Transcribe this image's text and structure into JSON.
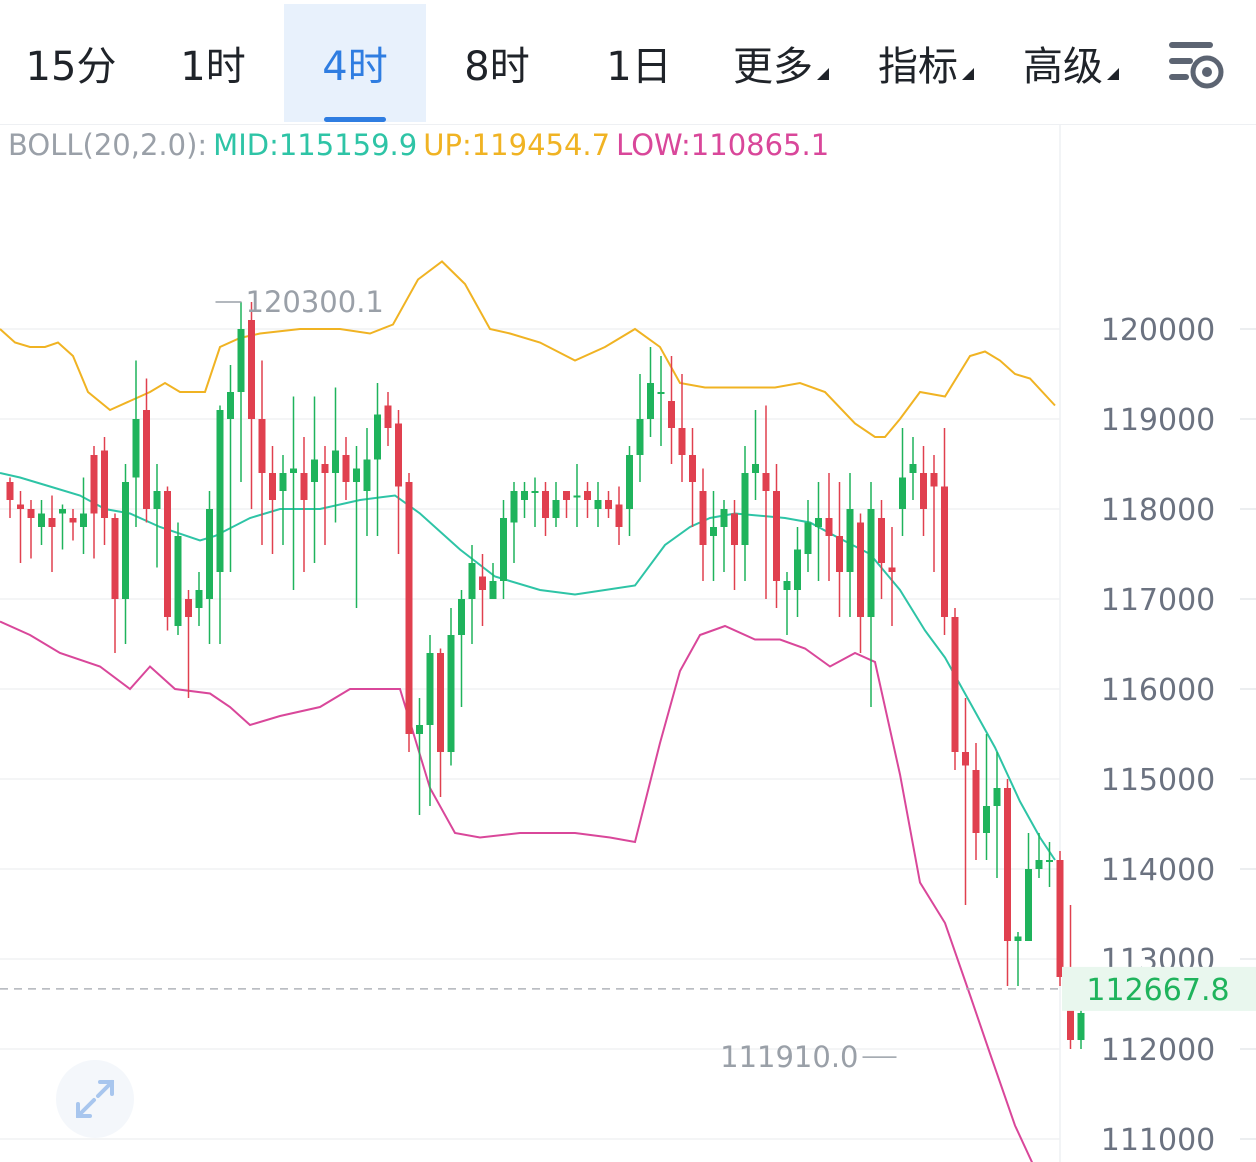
{
  "tabs": [
    {
      "label": "15分",
      "active": false
    },
    {
      "label": "1时",
      "active": false
    },
    {
      "label": "4时",
      "active": true
    },
    {
      "label": "8时",
      "active": false
    },
    {
      "label": "1日",
      "active": false
    },
    {
      "label": "更多",
      "active": false,
      "dropdown": true
    },
    {
      "label": "指标",
      "active": false,
      "dropdown": true
    },
    {
      "label": "高级",
      "active": false,
      "dropdown": true
    }
  ],
  "icons": {
    "settings": "chart-settings-icon",
    "expand": "expand-arrows-icon"
  },
  "legend": {
    "name": "BOLL(20,2.0):",
    "mid": "MID:115159.9",
    "up": "UP:119454.7",
    "low": "LOW:110865.1"
  },
  "colors": {
    "up_candle": "#1fb35c",
    "down_candle": "#e0404f",
    "mid_line": "#2ec4a6",
    "upper_band": "#f0b323",
    "lower_band": "#d9479a",
    "active_tab": "#2f7de1",
    "current_price": "#1fb35c"
  },
  "chart_data": {
    "type": "candlestick",
    "indicator": "BOLL(20,2.0)",
    "ylim": [
      110900,
      121900
    ],
    "y_ticks": [
      120000,
      119000,
      118000,
      117000,
      116000,
      115000,
      114000,
      113000,
      112000,
      111000
    ],
    "y_tick_labels": [
      "120000",
      "119000",
      "118000",
      "117000",
      "116000",
      "115000",
      "114000",
      "113000",
      "112000",
      "111000"
    ],
    "current_price": 112667.8,
    "current_price_label": "112667.8",
    "max_marker": {
      "value": 120300.1,
      "label": "120300.1",
      "index": 19
    },
    "min_marker": {
      "value": 111910.0,
      "label": "111910.0",
      "index": 85
    },
    "candles": [
      [
        118300,
        118100,
        118350,
        117900
      ],
      [
        118050,
        118000,
        118200,
        117400
      ],
      [
        118000,
        117900,
        118100,
        117450
      ],
      [
        117800,
        117950,
        118100,
        117600
      ],
      [
        117900,
        117800,
        118150,
        117300
      ],
      [
        117950,
        118000,
        118050,
        117550
      ],
      [
        117900,
        117850,
        118000,
        117650
      ],
      [
        117800,
        117950,
        118350,
        117500
      ],
      [
        118600,
        117950,
        118700,
        117450
      ],
      [
        118650,
        117900,
        118800,
        117600
      ],
      [
        117900,
        117000,
        117950,
        116400
      ],
      [
        117000,
        118300,
        118500,
        116500
      ],
      [
        118350,
        119000,
        119650,
        117800
      ],
      [
        119100,
        118000,
        119450,
        117850
      ],
      [
        118000,
        118200,
        118500,
        117350
      ],
      [
        118200,
        116800,
        118250,
        116650
      ],
      [
        116700,
        117700,
        117850,
        116600
      ],
      [
        117000,
        116800,
        117100,
        115900
      ],
      [
        116900,
        117100,
        117300,
        116700
      ],
      [
        117000,
        118000,
        118200,
        116500
      ],
      [
        117300,
        119100,
        119150,
        116500
      ],
      [
        119000,
        119300,
        119600,
        117300
      ],
      [
        119300,
        120000,
        120300,
        118300
      ],
      [
        120100,
        119000,
        120300,
        118000
      ],
      [
        119000,
        118400,
        119650,
        117600
      ],
      [
        118400,
        118100,
        118700,
        117500
      ],
      [
        118200,
        118400,
        118600,
        117600
      ],
      [
        118400,
        118450,
        119250,
        117100
      ],
      [
        118400,
        118100,
        118800,
        117300
      ],
      [
        118300,
        118550,
        119250,
        117400
      ],
      [
        118500,
        118400,
        118700,
        117600
      ],
      [
        118400,
        118650,
        119350,
        117850
      ],
      [
        118600,
        118300,
        118800,
        118100
      ],
      [
        118300,
        118450,
        118700,
        116900
      ],
      [
        118200,
        118550,
        118900,
        117700
      ],
      [
        118550,
        119050,
        119400,
        117700
      ],
      [
        119150,
        118900,
        119300,
        118700
      ],
      [
        118950,
        118250,
        119100,
        117500
      ],
      [
        118300,
        115500,
        118400,
        115300
      ],
      [
        115500,
        115600,
        115900,
        114600
      ],
      [
        115600,
        116400,
        116600,
        114700
      ],
      [
        116400,
        115300,
        116450,
        114800
      ],
      [
        115300,
        116600,
        116900,
        115150
      ],
      [
        116600,
        117000,
        117100,
        115800
      ],
      [
        117000,
        117400,
        117600,
        116500
      ],
      [
        117250,
        117100,
        117500,
        116700
      ],
      [
        117000,
        117200,
        117400,
        117100
      ],
      [
        117200,
        117900,
        118100,
        117000
      ],
      [
        117850,
        118200,
        118300,
        117400
      ],
      [
        118100,
        118200,
        118300,
        117900
      ],
      [
        118200,
        118200,
        118350,
        117800
      ],
      [
        118200,
        117900,
        118300,
        117700
      ],
      [
        117900,
        118100,
        118300,
        117800
      ],
      [
        118200,
        118100,
        118150,
        117900
      ],
      [
        118150,
        118150,
        118500,
        117800
      ],
      [
        118200,
        118100,
        118300,
        117900
      ],
      [
        118000,
        118100,
        118300,
        117800
      ],
      [
        118100,
        118000,
        118200,
        117900
      ],
      [
        118050,
        117800,
        118250,
        117600
      ],
      [
        118000,
        118600,
        118700,
        117700
      ],
      [
        118600,
        119000,
        119500,
        118300
      ],
      [
        119000,
        119400,
        119800,
        118800
      ],
      [
        119300,
        119300,
        119700,
        118700
      ],
      [
        119200,
        118900,
        119700,
        118500
      ],
      [
        118900,
        118600,
        119500,
        118300
      ],
      [
        118600,
        118300,
        118900,
        117800
      ],
      [
        118200,
        117600,
        118450,
        117200
      ],
      [
        117700,
        117800,
        118200,
        117200
      ],
      [
        117800,
        118000,
        118100,
        117300
      ],
      [
        117950,
        117600,
        118100,
        117100
      ],
      [
        117600,
        118400,
        118700,
        117200
      ],
      [
        118400,
        118500,
        119100,
        118100
      ],
      [
        118400,
        118200,
        119150,
        117000
      ],
      [
        118200,
        117200,
        118500,
        116900
      ],
      [
        117100,
        117200,
        117300,
        116600
      ],
      [
        117100,
        117550,
        117800,
        116800
      ],
      [
        117500,
        117850,
        118100,
        117300
      ],
      [
        117800,
        117900,
        118300,
        117200
      ],
      [
        117900,
        117700,
        118400,
        117200
      ],
      [
        117700,
        117300,
        118300,
        116800
      ],
      [
        117300,
        118000,
        118400,
        116800
      ],
      [
        117850,
        116800,
        117950,
        116400
      ],
      [
        116800,
        118000,
        118300,
        115800
      ],
      [
        117900,
        117400,
        118100,
        117000
      ],
      [
        117350,
        117300,
        117800,
        116700
      ],
      [
        118000,
        118350,
        118900,
        117700
      ],
      [
        118400,
        118500,
        118800,
        118100
      ],
      [
        118400,
        118000,
        118700,
        117700
      ],
      [
        118400,
        118250,
        118600,
        117300
      ],
      [
        118250,
        116800,
        118900,
        116600
      ],
      [
        116800,
        115300,
        116900,
        115100
      ],
      [
        115300,
        115150,
        115900,
        113600
      ],
      [
        115100,
        114400,
        115400,
        114100
      ],
      [
        114400,
        114700,
        115500,
        114100
      ],
      [
        114700,
        114900,
        115300,
        113900
      ],
      [
        114900,
        113200,
        115000,
        112700
      ],
      [
        113200,
        113250,
        113300,
        112700
      ],
      [
        113200,
        114000,
        114400,
        113200
      ],
      [
        114000,
        114100,
        114400,
        113900
      ],
      [
        114100,
        114100,
        114300,
        113800
      ],
      [
        114100,
        112800,
        114200,
        112700
      ],
      [
        112800,
        112100,
        113600,
        112000
      ],
      [
        112100,
        112400,
        112900,
        112000
      ],
      [
        112500,
        112700,
        112900,
        112500
      ]
    ],
    "boll": {
      "upper": [
        [
          0,
          120000
        ],
        [
          15,
          119850
        ],
        [
          30,
          119800
        ],
        [
          45,
          119800
        ],
        [
          58,
          119850
        ],
        [
          73,
          119700
        ],
        [
          88,
          119300
        ],
        [
          110,
          119100
        ],
        [
          130,
          119200
        ],
        [
          150,
          119300
        ],
        [
          165,
          119400
        ],
        [
          180,
          119300
        ],
        [
          205,
          119300
        ],
        [
          220,
          119800
        ],
        [
          240,
          119900
        ],
        [
          260,
          119950
        ],
        [
          300,
          120000
        ],
        [
          340,
          120000
        ],
        [
          370,
          119950
        ],
        [
          393,
          120050
        ],
        [
          418,
          120550
        ],
        [
          442,
          120750
        ],
        [
          465,
          120500
        ],
        [
          490,
          120000
        ],
        [
          510,
          119950
        ],
        [
          540,
          119850
        ],
        [
          575,
          119650
        ],
        [
          605,
          119800
        ],
        [
          635,
          120000
        ],
        [
          660,
          119800
        ],
        [
          680,
          119400
        ],
        [
          705,
          119350
        ],
        [
          735,
          119350
        ],
        [
          775,
          119350
        ],
        [
          800,
          119400
        ],
        [
          825,
          119300
        ],
        [
          855,
          118950
        ],
        [
          875,
          118800
        ],
        [
          885,
          118800
        ],
        [
          900,
          119000
        ],
        [
          920,
          119300
        ],
        [
          945,
          119250
        ],
        [
          970,
          119700
        ],
        [
          985,
          119750
        ],
        [
          1000,
          119650
        ],
        [
          1015,
          119500
        ],
        [
          1030,
          119450
        ],
        [
          1055,
          119150
        ]
      ],
      "mid": [
        [
          0,
          118400
        ],
        [
          20,
          118350
        ],
        [
          50,
          118250
        ],
        [
          80,
          118150
        ],
        [
          105,
          118000
        ],
        [
          130,
          117950
        ],
        [
          160,
          117800
        ],
        [
          200,
          117650
        ],
        [
          215,
          117700
        ],
        [
          250,
          117900
        ],
        [
          280,
          118000
        ],
        [
          320,
          118000
        ],
        [
          360,
          118100
        ],
        [
          395,
          118150
        ],
        [
          420,
          117950
        ],
        [
          460,
          117550
        ],
        [
          495,
          117250
        ],
        [
          540,
          117100
        ],
        [
          575,
          117050
        ],
        [
          605,
          117100
        ],
        [
          635,
          117150
        ],
        [
          665,
          117600
        ],
        [
          690,
          117800
        ],
        [
          710,
          117900
        ],
        [
          735,
          117950
        ],
        [
          785,
          117900
        ],
        [
          810,
          117850
        ],
        [
          835,
          117700
        ],
        [
          870,
          117500
        ],
        [
          900,
          117100
        ],
        [
          925,
          116650
        ],
        [
          945,
          116350
        ],
        [
          970,
          115850
        ],
        [
          995,
          115350
        ],
        [
          1020,
          114750
        ],
        [
          1040,
          114350
        ],
        [
          1055,
          114100
        ]
      ],
      "lower": [
        [
          0,
          116750
        ],
        [
          30,
          116600
        ],
        [
          60,
          116400
        ],
        [
          100,
          116250
        ],
        [
          130,
          116000
        ],
        [
          150,
          116250
        ],
        [
          175,
          116000
        ],
        [
          210,
          115950
        ],
        [
          230,
          115800
        ],
        [
          250,
          115600
        ],
        [
          280,
          115700
        ],
        [
          320,
          115800
        ],
        [
          350,
          116000
        ],
        [
          400,
          116000
        ],
        [
          430,
          114900
        ],
        [
          455,
          114400
        ],
        [
          480,
          114350
        ],
        [
          520,
          114400
        ],
        [
          575,
          114400
        ],
        [
          610,
          114350
        ],
        [
          635,
          114300
        ],
        [
          660,
          115400
        ],
        [
          680,
          116200
        ],
        [
          700,
          116600
        ],
        [
          725,
          116700
        ],
        [
          755,
          116550
        ],
        [
          780,
          116550
        ],
        [
          805,
          116450
        ],
        [
          830,
          116250
        ],
        [
          855,
          116400
        ],
        [
          875,
          116300
        ],
        [
          900,
          115050
        ],
        [
          920,
          113850
        ],
        [
          945,
          113400
        ],
        [
          970,
          112600
        ],
        [
          990,
          111950
        ],
        [
          1015,
          111150
        ],
        [
          1040,
          110550
        ],
        [
          1055,
          110250
        ]
      ]
    }
  }
}
